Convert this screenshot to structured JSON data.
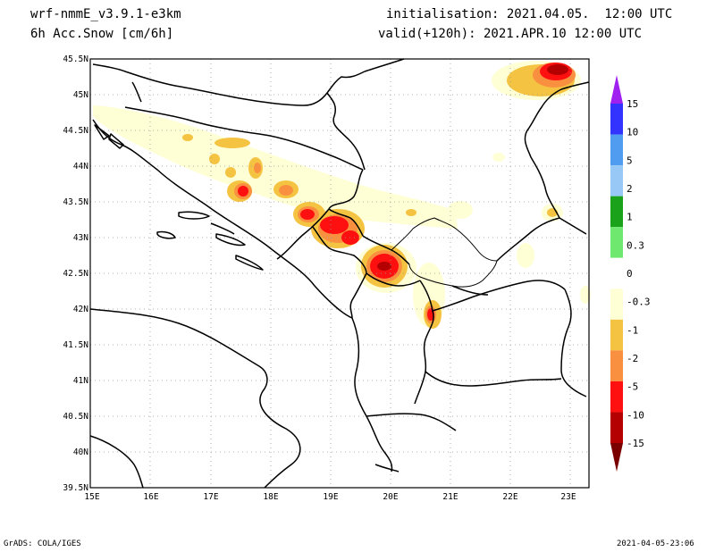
{
  "header": {
    "model": "wrf-nmmE_v3.9.1-e3km",
    "variable": "6h Acc.Snow [cm/6h]",
    "init": "initialisation: 2021.04.05.  12:00 UTC",
    "valid": "valid(+120h): 2021.APR.10 12:00 UTC"
  },
  "map": {
    "lat_labels": [
      "45.5N",
      "45N",
      "44.5N",
      "44N",
      "43.5N",
      "43N",
      "42.5N",
      "42N",
      "41.5N",
      "41N",
      "40.5N",
      "40N",
      "39.5N"
    ],
    "lon_labels": [
      "15E",
      "16E",
      "17E",
      "18E",
      "19E",
      "20E",
      "21E",
      "22E",
      "23E"
    ],
    "lat_range": [
      39.5,
      45.5
    ],
    "lon_range": [
      15.0,
      23.3
    ],
    "grid": "dotted"
  },
  "colorbar": {
    "labels": [
      "15",
      "10",
      "5",
      "2",
      "1",
      "0.3",
      "0",
      "-0.3",
      "-1",
      "-2",
      "-5",
      "-10",
      "-15"
    ],
    "colors": [
      "#a020f0",
      "#3333ff",
      "#4f9cf0",
      "#98c9f6",
      "#1aa31a",
      "#6ee86e",
      "#ffffff",
      "#ffffd6",
      "#f5c342",
      "#f99040",
      "#ff1010",
      "#b40000",
      "#7a0000"
    ]
  },
  "footer": {
    "left": "GrADS: COLA/IGES",
    "right": "2021-04-05-23:06"
  }
}
